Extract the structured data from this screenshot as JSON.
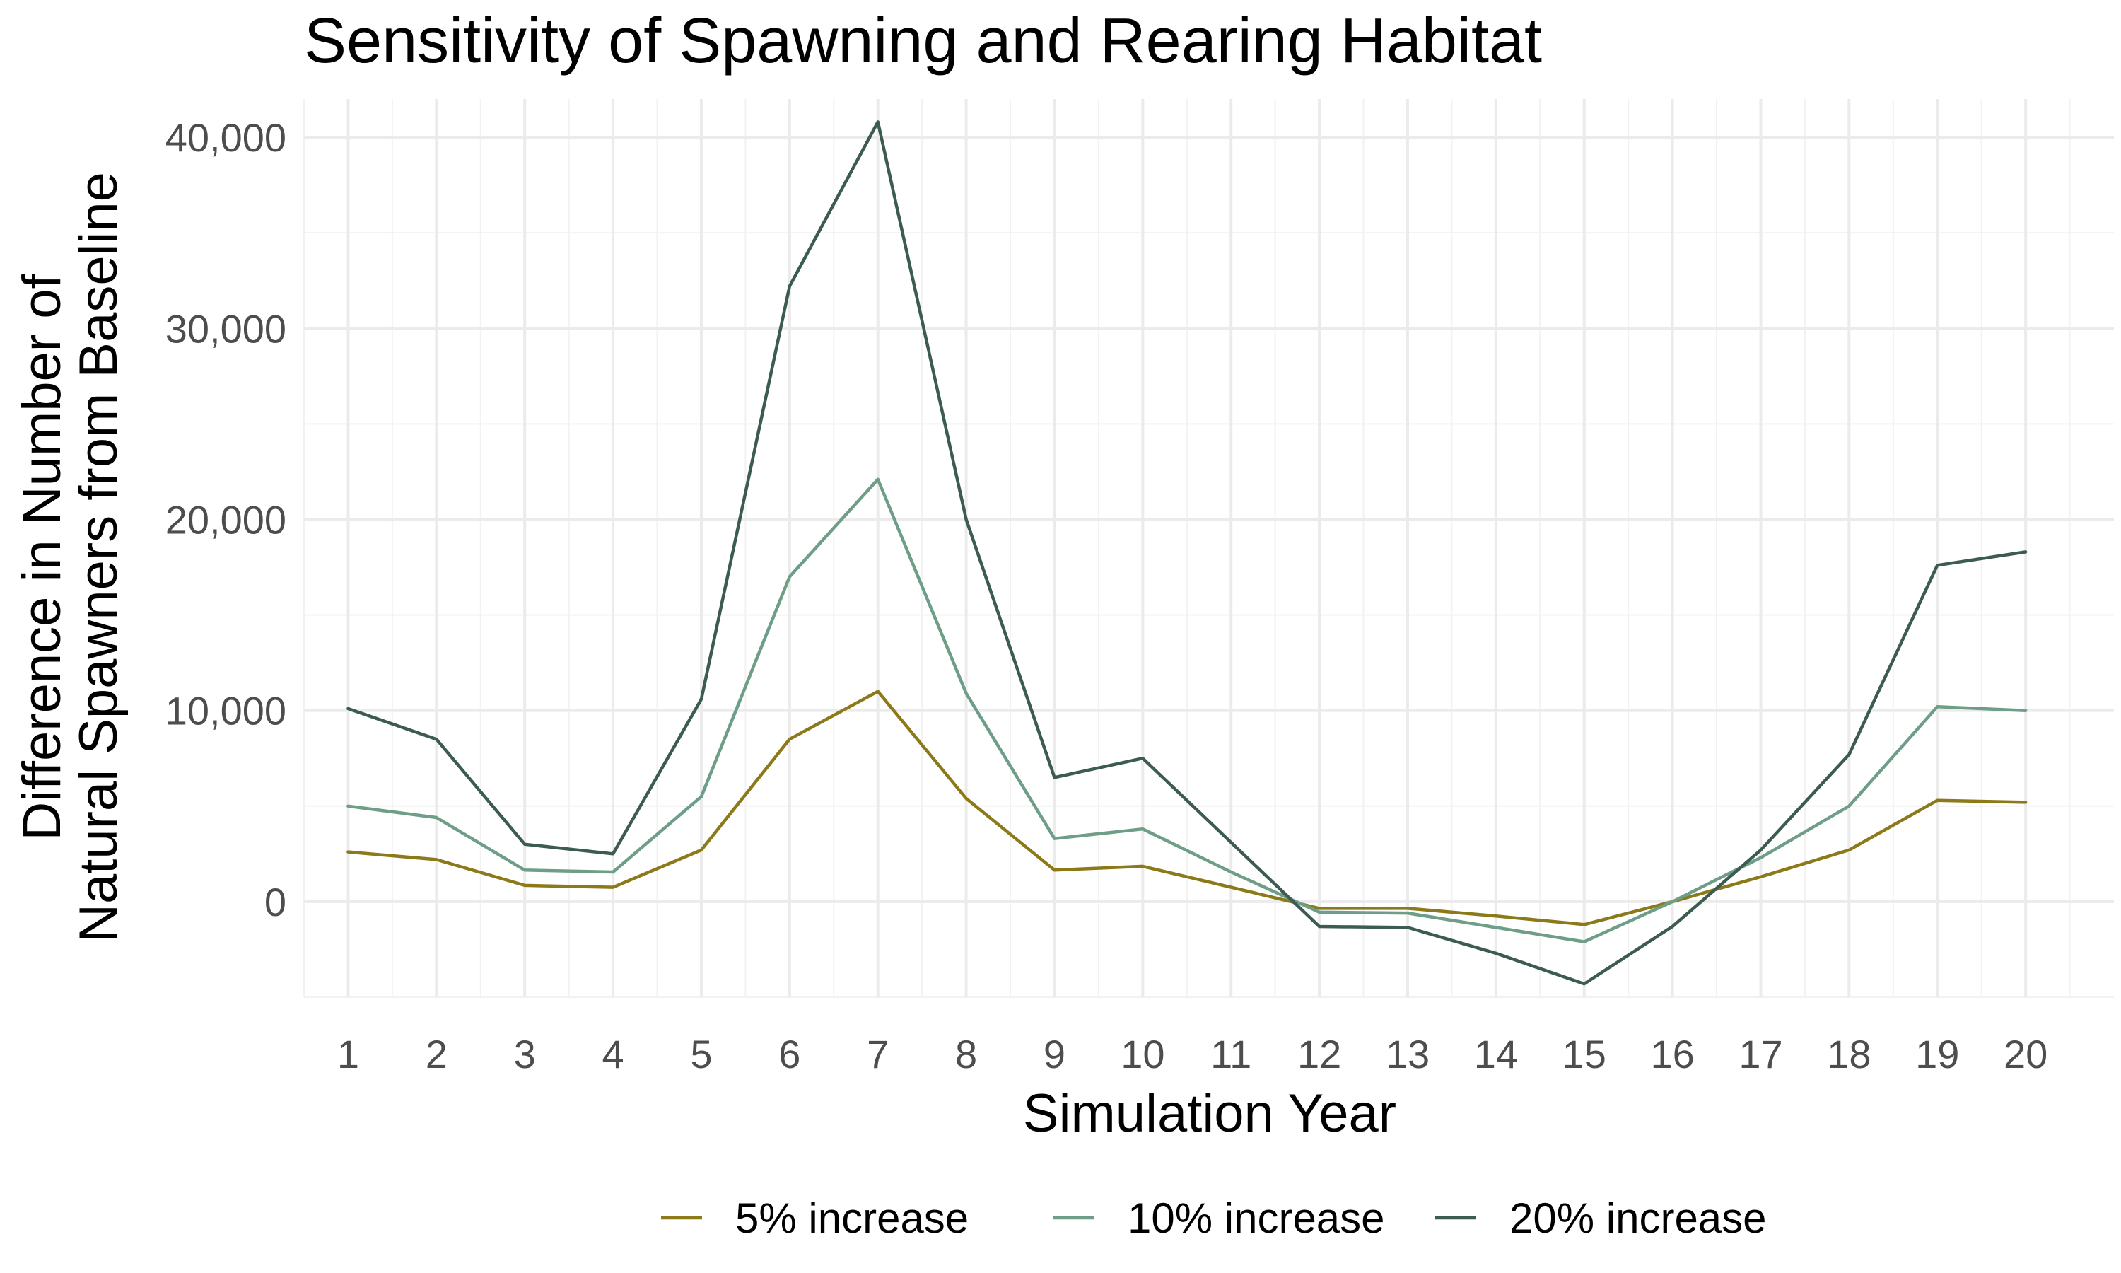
{
  "chart_data": {
    "type": "line",
    "title": "Sensitivity of Spawning and Rearing Habitat",
    "xlabel": "Simulation Year",
    "ylabel": [
      "Difference in Number of",
      "Natural Spawners from Baseline"
    ],
    "x": [
      1,
      2,
      3,
      4,
      5,
      6,
      7,
      8,
      9,
      10,
      11,
      12,
      13,
      14,
      15,
      16,
      17,
      18,
      19,
      20
    ],
    "xlim": [
      0.5,
      21
    ],
    "ylim": [
      -5000,
      42000
    ],
    "y_ticks": [
      0,
      10000,
      20000,
      30000,
      40000
    ],
    "y_tick_labels": [
      "0",
      "10,000",
      "20,000",
      "30,000",
      "40,000"
    ],
    "grid": true,
    "legend_position": "bottom",
    "series": [
      {
        "name": "5% increase",
        "color": "#8c7a1a",
        "values": [
          2600,
          2200,
          850,
          750,
          2700,
          8500,
          11000,
          5400,
          1650,
          1850,
          750,
          -350,
          -350,
          -750,
          -1200,
          0,
          1300,
          2700,
          5300,
          5200
        ]
      },
      {
        "name": "10% increase",
        "color": "#6e9e88",
        "values": [
          5000,
          4400,
          1650,
          1550,
          5500,
          17000,
          22100,
          10900,
          3300,
          3800,
          1550,
          -550,
          -600,
          -1350,
          -2100,
          0,
          2300,
          5000,
          10200,
          10000
        ]
      },
      {
        "name": "20% increase",
        "color": "#3d5c51",
        "values": [
          10100,
          8500,
          3000,
          2500,
          10600,
          32200,
          40800,
          20000,
          6500,
          7500,
          3100,
          -1300,
          -1350,
          -2700,
          -4300,
          -1300,
          2700,
          7700,
          17600,
          18300
        ]
      }
    ]
  }
}
